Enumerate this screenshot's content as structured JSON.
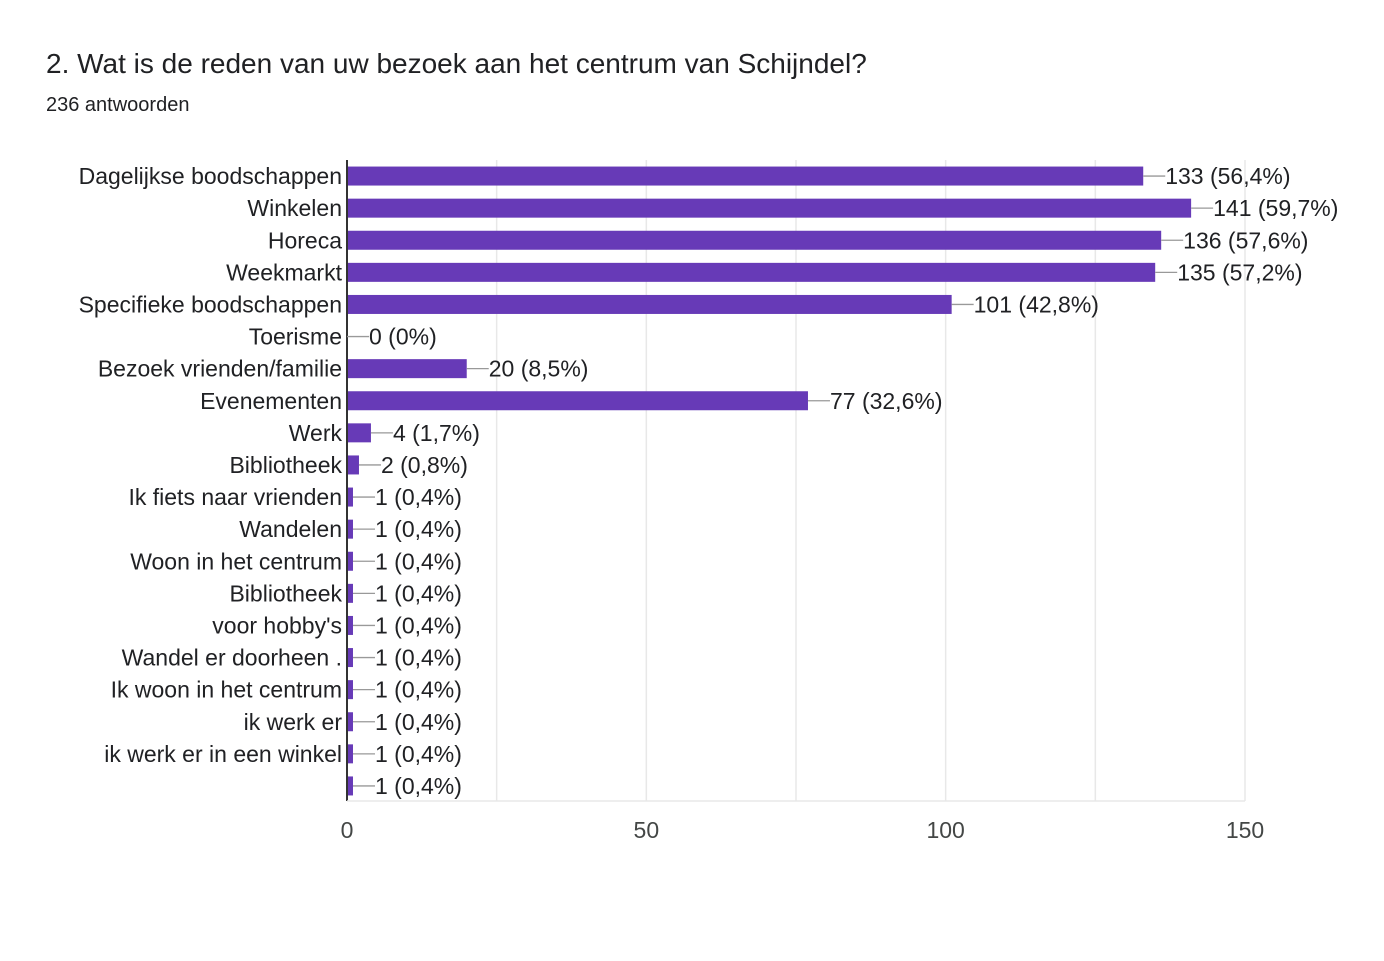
{
  "header": {
    "title": "2. Wat is de reden van uw bezoek aan het centrum van Schijndel?",
    "subtitle": "236 antwoorden"
  },
  "colors": {
    "bar": "#673ab7",
    "grid": "#e8e8e8",
    "axis": "#333333",
    "leader": "#999999"
  },
  "chart_data": {
    "type": "bar",
    "orientation": "horizontal",
    "categories": [
      "Dagelijkse boodschappen",
      "Winkelen",
      "Horeca",
      "Weekmarkt",
      "Specifieke boodschappen",
      "Toerisme",
      "Bezoek vrienden/familie",
      "Evenementen",
      "Werk",
      "Bibliotheek",
      "Ik fiets naar vrienden",
      "Wandelen",
      "Woon in het centrum",
      "Bibliotheek",
      "voor hobby's",
      "Wandel er doorheen .",
      "Ik woon in het centrum",
      "ik werk er",
      "ik werk er in een winkel",
      ""
    ],
    "values": [
      133,
      141,
      136,
      135,
      101,
      0,
      20,
      77,
      4,
      2,
      1,
      1,
      1,
      1,
      1,
      1,
      1,
      1,
      1,
      1
    ],
    "value_labels": [
      "133 (56,4%)",
      "141 (59,7%)",
      "136 (57,6%)",
      "135 (57,2%)",
      "101 (42,8%)",
      "0 (0%)",
      "20 (8,5%)",
      "77 (32,6%)",
      "4 (1,7%)",
      "2 (0,8%)",
      "1 (0,4%)",
      "1 (0,4%)",
      "1 (0,4%)",
      "1 (0,4%)",
      "1 (0,4%)",
      "1 (0,4%)",
      "1 (0,4%)",
      "1 (0,4%)",
      "1 (0,4%)",
      "1 (0,4%)"
    ],
    "xlim": [
      0,
      150
    ],
    "xticks": [
      0,
      50,
      100,
      150
    ],
    "xtick_labels": [
      "0",
      "50",
      "100",
      "150"
    ],
    "grid": true
  }
}
